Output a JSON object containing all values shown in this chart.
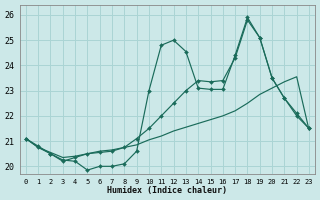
{
  "xlabel": "Humidex (Indice chaleur)",
  "bg_color": "#cce8e8",
  "grid_color": "#aad4d4",
  "line_color": "#1a6b5a",
  "xlim": [
    -0.5,
    23.5
  ],
  "ylim": [
    19.7,
    26.4
  ],
  "xticks": [
    0,
    1,
    2,
    3,
    4,
    5,
    6,
    7,
    8,
    9,
    10,
    11,
    12,
    13,
    14,
    15,
    16,
    17,
    18,
    19,
    20,
    21,
    22,
    23
  ],
  "yticks": [
    20,
    21,
    22,
    23,
    24,
    25,
    26
  ],
  "line1_x": [
    0,
    1,
    2,
    3,
    4,
    5,
    6,
    7,
    8,
    9,
    10,
    11,
    12,
    13,
    14,
    15,
    16,
    17,
    18,
    19,
    20,
    21,
    22,
    23
  ],
  "line1_y": [
    21.1,
    20.8,
    20.5,
    20.25,
    20.2,
    19.85,
    20.0,
    20.0,
    20.1,
    20.6,
    23.0,
    24.8,
    25.0,
    24.55,
    23.1,
    23.05,
    23.05,
    24.4,
    25.9,
    25.1,
    23.5,
    22.7,
    22.1,
    21.5
  ],
  "line2_x": [
    0,
    1,
    2,
    3,
    4,
    5,
    6,
    7,
    8,
    9,
    10,
    11,
    12,
    13,
    14,
    15,
    16,
    17,
    18,
    19,
    20,
    21,
    22,
    23
  ],
  "line2_y": [
    21.1,
    20.75,
    20.5,
    20.2,
    20.35,
    20.5,
    20.55,
    20.6,
    20.75,
    21.1,
    21.5,
    22.0,
    22.5,
    23.0,
    23.4,
    23.35,
    23.4,
    24.3,
    25.8,
    25.1,
    23.5,
    22.7,
    22.0,
    21.5
  ],
  "line3_x": [
    0,
    1,
    2,
    3,
    4,
    5,
    6,
    7,
    8,
    9,
    10,
    11,
    12,
    13,
    14,
    15,
    16,
    17,
    18,
    19,
    20,
    21,
    22,
    23
  ],
  "line3_y": [
    21.1,
    20.75,
    20.55,
    20.35,
    20.4,
    20.5,
    20.6,
    20.65,
    20.75,
    20.85,
    21.05,
    21.2,
    21.4,
    21.55,
    21.7,
    21.85,
    22.0,
    22.2,
    22.5,
    22.85,
    23.1,
    23.35,
    23.55,
    21.45
  ]
}
